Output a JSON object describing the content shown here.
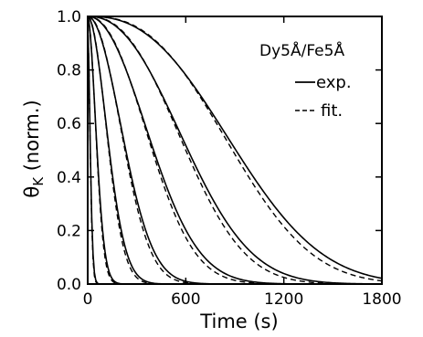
{
  "chart_data": {
    "type": "line",
    "annotation": "Dy5Å/Fe5Å",
    "xlabel": "Time (s)",
    "ylabel_symbol": "θ",
    "ylabel_sub": "K",
    "ylabel_rest": " (norm.)",
    "xlim": [
      0,
      1800
    ],
    "ylim": [
      0,
      1.0
    ],
    "xticks": [
      "0",
      "600",
      "1200",
      "1800"
    ],
    "xtick_values": [
      0,
      600,
      1200,
      1800
    ],
    "yticks": [
      "0.0",
      "0.2",
      "0.4",
      "0.6",
      "0.8",
      "1.0"
    ],
    "ytick_values": [
      0,
      0.2,
      0.4,
      0.6,
      0.8,
      1.0
    ],
    "legend": [
      {
        "label": "exp.",
        "style": "solid"
      },
      {
        "label": "fit.",
        "style": "dashed"
      }
    ],
    "legend_position": "right",
    "grid": false,
    "curve_model": "theta = exp(-(t/tau)^beta)",
    "series": [
      {
        "tau": 20,
        "beta": 1.6
      },
      {
        "tau": 70,
        "beta": 1.8
      },
      {
        "tau": 160,
        "beta": 1.9
      },
      {
        "tau": 280,
        "beta": 2.0
      },
      {
        "tau": 480,
        "beta": 2.1
      },
      {
        "tau": 720,
        "beta": 2.3
      },
      {
        "tau": 1050,
        "beta": 2.5
      }
    ]
  }
}
